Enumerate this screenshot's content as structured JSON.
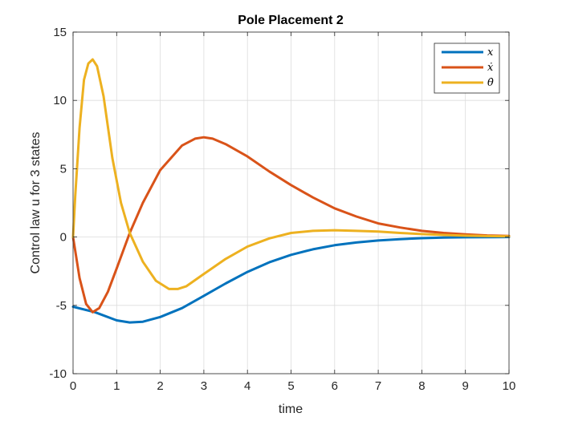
{
  "chart_data": {
    "type": "line",
    "title": "Pole Placement 2",
    "xlabel": "time",
    "ylabel": "Control law u for 3 states",
    "xlim": [
      0,
      10
    ],
    "ylim": [
      -10,
      15
    ],
    "xticks": [
      0,
      1,
      2,
      3,
      4,
      5,
      6,
      7,
      8,
      9,
      10
    ],
    "yticks": [
      -10,
      -5,
      0,
      5,
      10,
      15
    ],
    "xtick_labels": [
      "0",
      "1",
      "2",
      "3",
      "4",
      "5",
      "6",
      "7",
      "8",
      "9",
      "10"
    ],
    "ytick_labels": [
      "-10",
      "-5",
      "0",
      "5",
      "10",
      "15"
    ],
    "grid": true,
    "legend_position": "top-right",
    "series": [
      {
        "name": "x",
        "legend_label": "x",
        "color": "#0072BD",
        "x": [
          0,
          0.5,
          1.0,
          1.3,
          1.6,
          2.0,
          2.5,
          3.0,
          3.5,
          4.0,
          4.5,
          5.0,
          5.5,
          6.0,
          6.5,
          7.0,
          7.5,
          8.0,
          8.5,
          9.0,
          9.5,
          10.0
        ],
        "y": [
          -5.1,
          -5.5,
          -6.1,
          -6.25,
          -6.2,
          -5.85,
          -5.2,
          -4.3,
          -3.4,
          -2.55,
          -1.85,
          -1.3,
          -0.9,
          -0.6,
          -0.4,
          -0.25,
          -0.15,
          -0.08,
          -0.04,
          -0.02,
          -0.01,
          0
        ]
      },
      {
        "name": "x-dot",
        "legend_label": "ẋ",
        "color": "#D95319",
        "x": [
          0,
          0.15,
          0.3,
          0.45,
          0.6,
          0.8,
          1.0,
          1.3,
          1.6,
          2.0,
          2.5,
          2.8,
          3.0,
          3.2,
          3.5,
          4.0,
          4.5,
          5.0,
          5.5,
          6.0,
          6.5,
          7.0,
          7.5,
          8.0,
          8.5,
          9.0,
          9.5,
          10.0
        ],
        "y": [
          0,
          -3.0,
          -4.9,
          -5.5,
          -5.2,
          -4.0,
          -2.3,
          0.3,
          2.5,
          4.9,
          6.7,
          7.2,
          7.3,
          7.2,
          6.8,
          5.9,
          4.8,
          3.8,
          2.9,
          2.1,
          1.5,
          1.0,
          0.7,
          0.45,
          0.3,
          0.2,
          0.12,
          0.08
        ]
      },
      {
        "name": "theta-dot",
        "legend_label": "θ̇",
        "color": "#EDB120",
        "x": [
          0,
          0.05,
          0.15,
          0.25,
          0.35,
          0.45,
          0.55,
          0.7,
          0.9,
          1.1,
          1.3,
          1.6,
          1.9,
          2.2,
          2.4,
          2.6,
          3.0,
          3.5,
          4.0,
          4.5,
          5.0,
          5.5,
          6.0,
          6.5,
          7.0,
          7.5,
          8.0,
          8.5,
          9.0,
          9.5,
          10.0
        ],
        "y": [
          0,
          3.0,
          8.0,
          11.5,
          12.7,
          13.0,
          12.5,
          10.3,
          5.8,
          2.5,
          0.3,
          -1.8,
          -3.2,
          -3.8,
          -3.8,
          -3.6,
          -2.7,
          -1.6,
          -0.7,
          -0.1,
          0.3,
          0.45,
          0.5,
          0.45,
          0.4,
          0.3,
          0.22,
          0.15,
          0.1,
          0.07,
          0.05
        ]
      }
    ]
  }
}
